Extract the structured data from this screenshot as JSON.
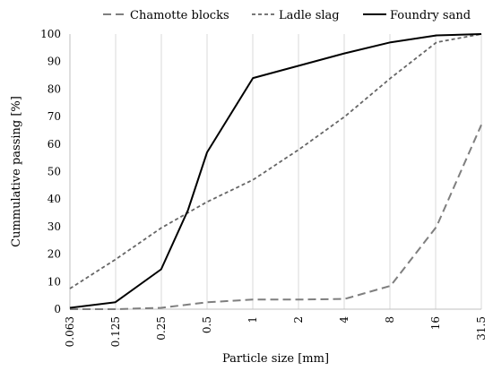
{
  "chart_data": {
    "type": "line",
    "categories": [
      "0.063",
      "0.125",
      "0.25",
      "0.5",
      "1",
      "2",
      "4",
      "8",
      "16",
      "31.5"
    ],
    "xlabel": "Particle size [mm]",
    "ylabel": "Cummulative passing [%]",
    "ylim": [
      0,
      100
    ],
    "yticks": [
      0,
      10,
      20,
      30,
      40,
      50,
      60,
      70,
      80,
      90,
      100
    ],
    "grid": "vertical lines at each category",
    "legend_position": "top",
    "series": [
      {
        "name": "Chamotte blocks",
        "style": "dashed",
        "color": "#7f7f7f",
        "x": [
          0.063,
          0.125,
          0.25,
          0.5,
          1,
          2,
          4,
          8,
          16,
          31.5
        ],
        "y": [
          0,
          0,
          0.5,
          2.5,
          3.5,
          3.5,
          3.7,
          8.5,
          30,
          67
        ]
      },
      {
        "name": "Ladle slag",
        "style": "short-dashed",
        "color": "#666666",
        "x": [
          0.063,
          0.125,
          0.25,
          0.5,
          1,
          2,
          4,
          8,
          16,
          31.5
        ],
        "y": [
          7.5,
          18,
          29.5,
          39,
          47,
          58,
          70,
          84,
          97,
          100
        ]
      },
      {
        "name": "Foundry sand",
        "style": "solid",
        "color": "#000000",
        "x": [
          0.063,
          0.125,
          0.25,
          0.375,
          0.5,
          1,
          4,
          8,
          16,
          31.5
        ],
        "y": [
          0.5,
          2.5,
          14.5,
          36,
          57,
          84,
          93,
          97,
          99.5,
          100
        ]
      }
    ]
  }
}
